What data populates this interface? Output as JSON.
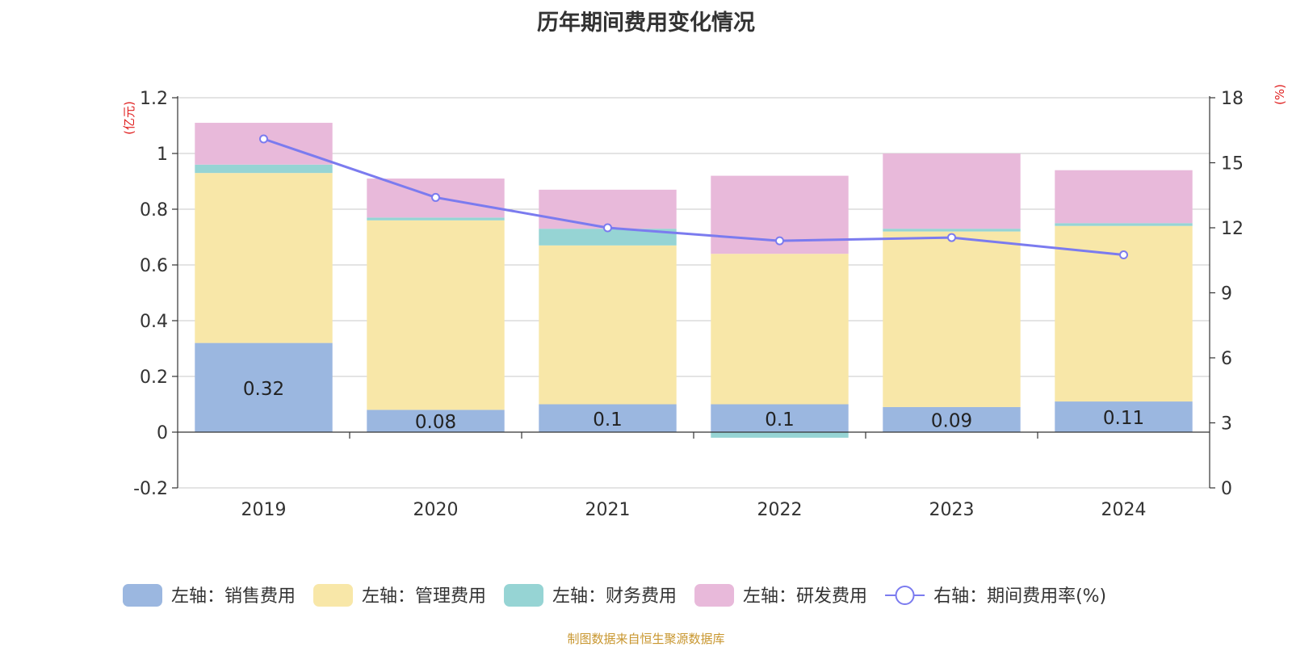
{
  "chart_data": {
    "type": "bar",
    "title": "历年期间费用变化情况",
    "categories": [
      "2019",
      "2020",
      "2021",
      "2022",
      "2023",
      "2024"
    ],
    "left_axis": {
      "unit": "(亿元)",
      "ylim": [
        -0.2,
        1.2
      ],
      "ticks": [
        "-0.2",
        "0",
        "0.2",
        "0.4",
        "0.6",
        "0.8",
        "1",
        "1.2"
      ]
    },
    "right_axis": {
      "unit": "(%)",
      "ylim": [
        0,
        18
      ],
      "ticks": [
        "0",
        "3",
        "6",
        "9",
        "12",
        "15",
        "18"
      ]
    },
    "series": [
      {
        "name": "左轴：销售费用",
        "axis": "left",
        "kind": "bar",
        "color": "#9bb7e0",
        "values": [
          0.32,
          0.08,
          0.1,
          0.1,
          0.09,
          0.11
        ],
        "labels": [
          "0.32",
          "0.08",
          "0.1",
          "0.1",
          "0.09",
          "0.11"
        ]
      },
      {
        "name": "左轴：管理费用",
        "axis": "left",
        "kind": "bar",
        "color": "#f8e7a8",
        "values": [
          0.61,
          0.68,
          0.57,
          0.54,
          0.63,
          0.63
        ]
      },
      {
        "name": "左轴：财务费用",
        "axis": "left",
        "kind": "bar",
        "color": "#96d4d4",
        "values": [
          0.03,
          0.01,
          0.06,
          -0.02,
          0.01,
          0.01
        ]
      },
      {
        "name": "左轴：研发费用",
        "axis": "left",
        "kind": "bar",
        "color": "#e8b9da",
        "values": [
          0.15,
          0.14,
          0.14,
          0.28,
          0.27,
          0.19
        ]
      },
      {
        "name": "右轴：期间费用率(%)",
        "axis": "right",
        "kind": "line",
        "color": "#7b7bef",
        "values": [
          16.1,
          13.4,
          12.0,
          11.4,
          11.55,
          10.75
        ]
      }
    ]
  },
  "source": "制图数据来自恒生聚源数据库"
}
